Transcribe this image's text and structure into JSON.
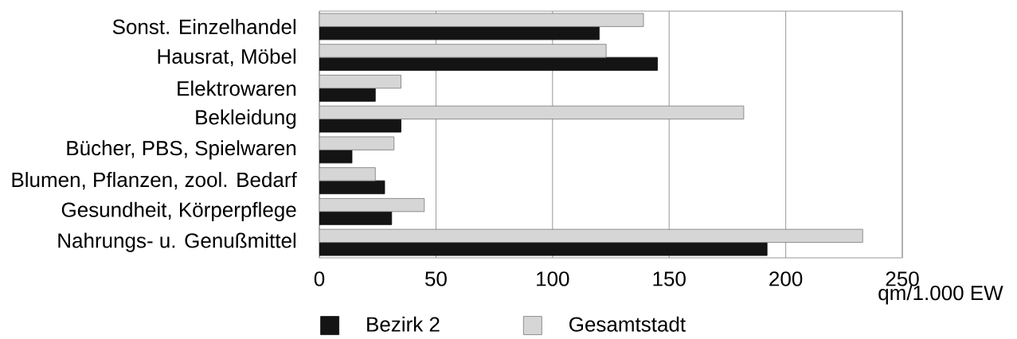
{
  "chart_data": {
    "type": "bar",
    "orientation": "horizontal",
    "categories": [
      "Sonst. Einzelhandel",
      "Hausrat, Möbel",
      "Elektrowaren",
      "Bekleidung",
      "Bücher, PBS, Spielwaren",
      "Blumen, Pflanzen, zool. Bedarf",
      "Gesundheit, Körperpflege",
      "Nahrungs- u. Genußmittel"
    ],
    "series": [
      {
        "name": "Bezirk 2",
        "color": "#141414",
        "values": [
          120,
          145,
          24,
          35,
          14,
          28,
          31,
          192
        ]
      },
      {
        "name": "Gesamtstadt",
        "color": "#d6d6d6",
        "values": [
          139,
          123,
          35,
          182,
          32,
          24,
          45,
          233
        ]
      }
    ],
    "xlabel": "qm/1.000 EW",
    "xlim": [
      0,
      250
    ],
    "xticks": [
      0,
      50,
      100,
      150,
      200,
      250
    ],
    "grid": "x",
    "legend": "bottom"
  }
}
